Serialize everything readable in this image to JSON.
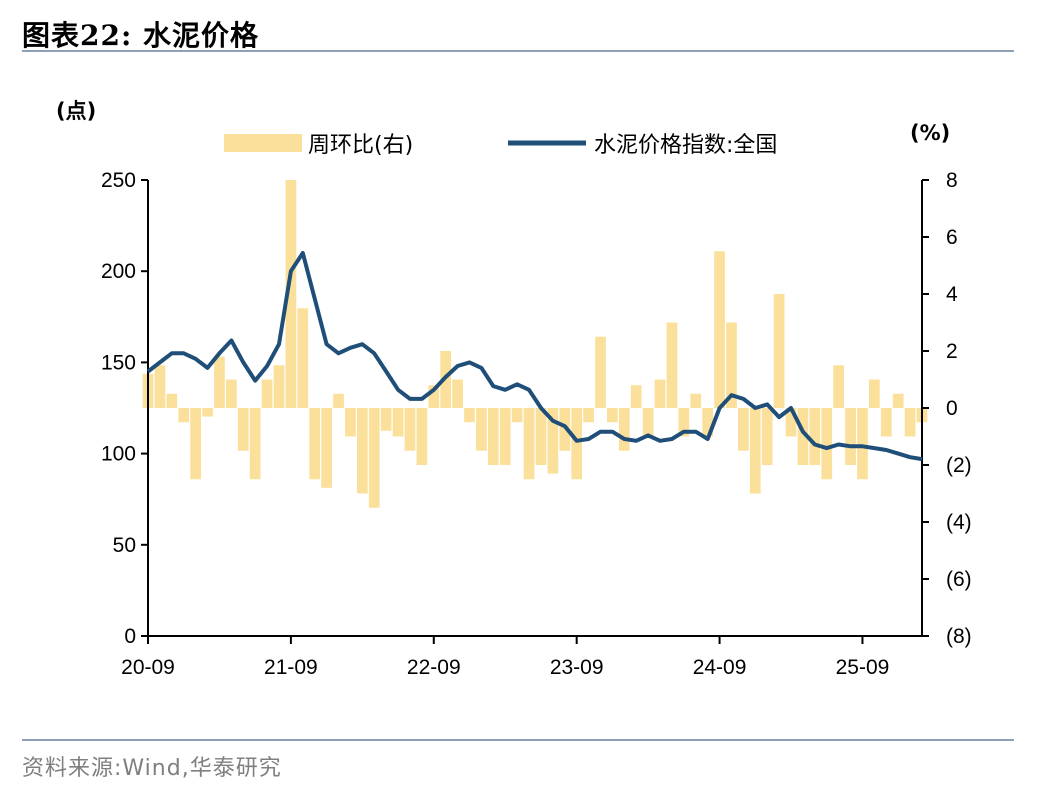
{
  "header": {
    "title": "图表22:  水泥价格"
  },
  "footer": {
    "source": "资料来源:Wind,华泰研究"
  },
  "chart_data": {
    "type": "bar+line",
    "title": "水泥价格",
    "y_left_unit": "(点)",
    "y_right_unit": "(%)",
    "y_left_ticks": [
      "0",
      "50",
      "100",
      "150",
      "200",
      "250"
    ],
    "y_right_ticks": [
      "(8)",
      "(6)",
      "(4)",
      "(2)",
      "0",
      "2",
      "4",
      "6",
      "8"
    ],
    "y_left_lim": [
      0,
      250
    ],
    "y_right_lim": [
      -8,
      8
    ],
    "x_ticks": [
      "20-09",
      "21-09",
      "22-09",
      "23-09",
      "24-09",
      "25-09"
    ],
    "x_range": [
      "2020-09",
      "2026-02"
    ],
    "legend": [
      "周环比(右)",
      "水泥价格指数:全国"
    ],
    "legend_position": "top",
    "colors": {
      "bar": "#fbe09b",
      "line": "#1f4e79"
    },
    "series": [
      {
        "name": "水泥价格指数:全国",
        "axis": "left",
        "kind": "line",
        "x": [
          "2020-09",
          "2020-10",
          "2020-11",
          "2020-12",
          "2021-01",
          "2021-02",
          "2021-03",
          "2021-04",
          "2021-05",
          "2021-06",
          "2021-07",
          "2021-08",
          "2021-09",
          "2021-10",
          "2021-11",
          "2021-12",
          "2022-01",
          "2022-02",
          "2022-03",
          "2022-04",
          "2022-05",
          "2022-06",
          "2022-07",
          "2022-08",
          "2022-09",
          "2022-10",
          "2022-11",
          "2022-12",
          "2023-01",
          "2023-02",
          "2023-03",
          "2023-04",
          "2023-05",
          "2023-06",
          "2023-07",
          "2023-08",
          "2023-09",
          "2023-10",
          "2023-11",
          "2023-12",
          "2024-01",
          "2024-02",
          "2024-03",
          "2024-04",
          "2024-05",
          "2024-06",
          "2024-07",
          "2024-08",
          "2024-09",
          "2024-10",
          "2024-11",
          "2024-12",
          "2025-01",
          "2025-02",
          "2025-03",
          "2025-04",
          "2025-05",
          "2025-06",
          "2025-07",
          "2025-08",
          "2025-09",
          "2025-10",
          "2025-11",
          "2025-12",
          "2026-01",
          "2026-02"
        ],
        "values": [
          145,
          150,
          155,
          155,
          152,
          147,
          155,
          162,
          150,
          140,
          148,
          160,
          200,
          210,
          185,
          160,
          155,
          158,
          160,
          155,
          145,
          135,
          130,
          130,
          135,
          142,
          148,
          150,
          147,
          137,
          135,
          138,
          135,
          125,
          118,
          115,
          107,
          108,
          112,
          112,
          108,
          107,
          110,
          107,
          108,
          112,
          112,
          108,
          125,
          132,
          130,
          125,
          127,
          120,
          125,
          112,
          105,
          103,
          105,
          104,
          104,
          103,
          102,
          100,
          98,
          97
        ]
      },
      {
        "name": "周环比(右)",
        "axis": "right",
        "kind": "bar",
        "x": [
          "2020-09",
          "2020-10",
          "2020-11",
          "2020-12",
          "2021-01",
          "2021-02",
          "2021-03",
          "2021-04",
          "2021-05",
          "2021-06",
          "2021-07",
          "2021-08",
          "2021-09",
          "2021-10",
          "2021-11",
          "2021-12",
          "2022-01",
          "2022-02",
          "2022-03",
          "2022-04",
          "2022-05",
          "2022-06",
          "2022-07",
          "2022-08",
          "2022-09",
          "2022-10",
          "2022-11",
          "2022-12",
          "2023-01",
          "2023-02",
          "2023-03",
          "2023-04",
          "2023-05",
          "2023-06",
          "2023-07",
          "2023-08",
          "2023-09",
          "2023-10",
          "2023-11",
          "2023-12",
          "2024-01",
          "2024-02",
          "2024-03",
          "2024-04",
          "2024-05",
          "2024-06",
          "2024-07",
          "2024-08",
          "2024-09",
          "2024-10",
          "2024-11",
          "2024-12",
          "2025-01",
          "2025-02",
          "2025-03",
          "2025-04",
          "2025-05",
          "2025-06",
          "2025-07",
          "2025-08",
          "2025-09",
          "2025-10",
          "2025-11",
          "2025-12",
          "2026-01",
          "2026-02"
        ],
        "values": [
          1.2,
          1.5,
          0.5,
          -0.5,
          -2.5,
          -0.3,
          1.8,
          1.0,
          -1.5,
          -2.5,
          1.0,
          1.5,
          8.0,
          3.5,
          -2.5,
          -2.8,
          0.5,
          -1.0,
          -3.0,
          -3.5,
          -0.8,
          -1.0,
          -1.5,
          -2.0,
          0.8,
          2.0,
          1.0,
          -0.5,
          -1.5,
          -2.0,
          -2.0,
          -0.5,
          -2.5,
          -2.0,
          -2.3,
          -1.5,
          -2.5,
          -0.5,
          2.5,
          -0.5,
          -1.5,
          0.8,
          -1.0,
          1.0,
          3.0,
          -1.0,
          0.5,
          -1.0,
          5.5,
          3.0,
          -1.5,
          -3.0,
          -2.0,
          4.0,
          -1.0,
          -2.0,
          -2.0,
          -2.5,
          1.5,
          -2.0,
          -2.5,
          1.0,
          -1.0,
          0.5,
          -1.0,
          -0.5
        ]
      }
    ]
  }
}
